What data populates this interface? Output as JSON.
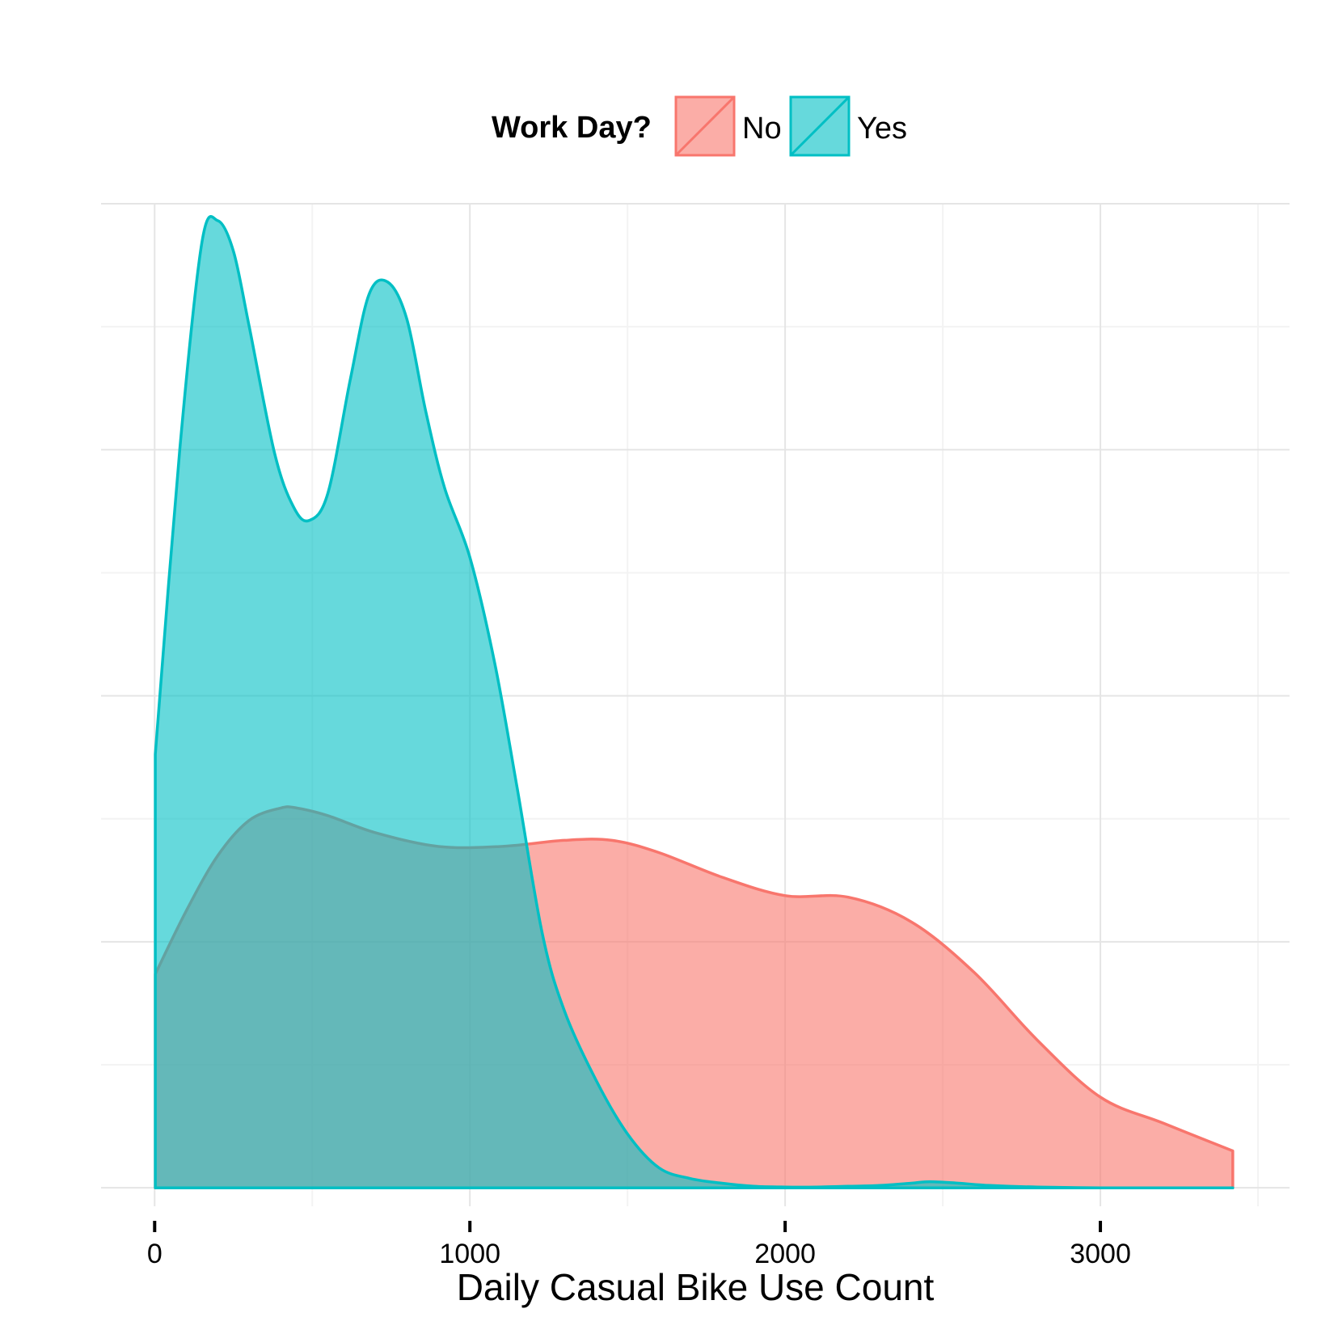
{
  "chart_data": {
    "type": "area",
    "chart_kind": "density",
    "title": "",
    "xlabel": "Daily Casual Bike Use Count",
    "ylabel": "",
    "xlim": [
      -170,
      3600
    ],
    "ylim": [
      -1.2e-05,
      0.00064
    ],
    "x_ticks": [
      0,
      1000,
      2000,
      3000
    ],
    "x_tick_labels": [
      "0",
      "1000",
      "2000",
      "3000"
    ],
    "y_ticks": [
      0,
      0.00016,
      0.00032,
      0.00048,
      0.00064
    ],
    "y_tick_labels": [],
    "grid": true,
    "legend": {
      "title": "Work Day?",
      "position": "top",
      "entries": [
        "No",
        "Yes"
      ]
    },
    "series": [
      {
        "name": "No",
        "fill": "#F8766D",
        "stroke": "#F8766D",
        "fill_opacity": 0.6,
        "x": [
          2,
          100,
          200,
          300,
          400,
          450,
          550,
          700,
          900,
          1100,
          1300,
          1450,
          1600,
          1800,
          2000,
          2200,
          2400,
          2600,
          2800,
          3000,
          3200,
          3420
        ],
        "y": [
          0.000139,
          0.00018,
          0.000216,
          0.000239,
          0.000247,
          0.000247,
          0.000242,
          0.000231,
          0.000222,
          0.000222,
          0.000226,
          0.000226,
          0.000218,
          0.000202,
          0.00019,
          0.000189,
          0.000173,
          0.00014,
          9.6e-05,
          5.9e-05,
          4.2e-05,
          2.4e-05
        ]
      },
      {
        "name": "Yes",
        "fill": "#00BFC4",
        "stroke": "#00BFC4",
        "fill_opacity": 0.6,
        "x": [
          2,
          80,
          150,
          200,
          250,
          300,
          380,
          440,
          490,
          550,
          620,
          680,
          740,
          800,
          860,
          920,
          1000,
          1080,
          1150,
          1230,
          1300,
          1400,
          1500,
          1600,
          1700,
          1800,
          1900,
          2000,
          2100,
          2200,
          2300,
          2400,
          2460,
          2550,
          2650,
          2800,
          3000,
          3200,
          3420
        ],
        "y": [
          0.000282,
          0.000481,
          0.000615,
          0.000629,
          0.000609,
          0.00056,
          0.000478,
          0.000443,
          0.000434,
          0.000452,
          0.000525,
          0.000581,
          0.000589,
          0.000565,
          0.000505,
          0.000455,
          0.00041,
          0.00034,
          0.00026,
          0.000165,
          0.000115,
          7e-05,
          3.5e-05,
          1.3e-05,
          6e-06,
          3e-06,
          1e-06,
          5e-07,
          5e-07,
          1e-06,
          1.5e-06,
          3e-06,
          4e-06,
          3e-06,
          1.5e-06,
          5e-07,
          0.0,
          0.0,
          0.0
        ]
      }
    ]
  }
}
